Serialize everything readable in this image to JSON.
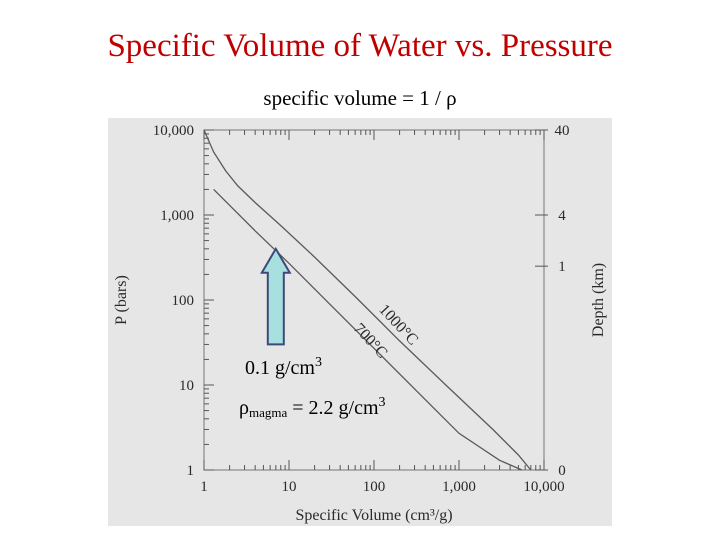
{
  "slide": {
    "title": "Specific Volume of Water vs. Pressure",
    "subtitle": "specific volume = 1 / ρ"
  },
  "chart_data": {
    "type": "line",
    "xscale": "log",
    "yscale": "log",
    "xlim": [
      1,
      10000
    ],
    "ylim": [
      1,
      10000
    ],
    "xlabel": "Specific Volume (cm³/g)",
    "ylabel": "P (bars)",
    "x_ticks": [
      1,
      10,
      100,
      1000,
      10000
    ],
    "x_tick_labels": [
      "1",
      "10",
      "100",
      "1,000",
      "10,000"
    ],
    "y_ticks": [
      1,
      10,
      100,
      1000,
      10000
    ],
    "y_tick_labels": [
      "1",
      "10",
      "100",
      "1,000",
      "10,000"
    ],
    "right_axis": {
      "label": "Depth (km)",
      "ticks": [
        {
          "pressure": 10000,
          "label": "40"
        },
        {
          "pressure": 1000,
          "label": "4"
        },
        {
          "pressure": 250,
          "label": "1"
        },
        {
          "pressure": 1,
          "label": "0"
        }
      ]
    },
    "grid": false,
    "background": "#e6e6e6",
    "series": [
      {
        "name": "1000°C",
        "points": [
          [
            1,
            10000
          ],
          [
            1.3,
            5500
          ],
          [
            1.8,
            3300
          ],
          [
            2.5,
            2200
          ],
          [
            4,
            1400
          ],
          [
            8,
            750
          ],
          [
            20,
            320
          ],
          [
            60,
            110
          ],
          [
            200,
            33
          ],
          [
            700,
            10
          ],
          [
            2500,
            3
          ],
          [
            5000,
            1.5
          ],
          [
            7000,
            1
          ]
        ]
      },
      {
        "name": "700°C",
        "points": [
          [
            1.3,
            2000
          ],
          [
            2,
            1300
          ],
          [
            4,
            650
          ],
          [
            10,
            270
          ],
          [
            30,
            90
          ],
          [
            100,
            27
          ],
          [
            300,
            9
          ],
          [
            1000,
            2.7
          ],
          [
            3000,
            1.3
          ],
          [
            5500,
            1
          ]
        ]
      }
    ],
    "annotations": {
      "arrow_color": "#a8e0e0",
      "arrow_stroke": "#3c4a78",
      "arrow_x": 7,
      "arrow_y_range": [
        30,
        400
      ],
      "density_low": {
        "value": "0.1 g/cm",
        "sup": "3"
      },
      "density_magma": {
        "rho": "ρ",
        "sub": "magma",
        "value": " = 2.2 g/cm",
        "sup": "3"
      }
    }
  }
}
